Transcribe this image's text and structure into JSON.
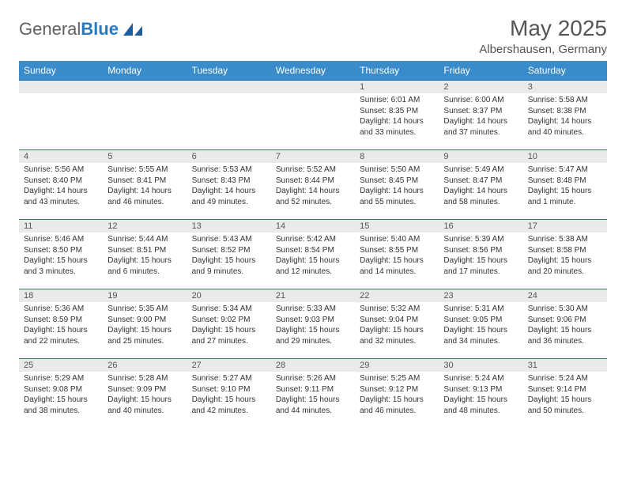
{
  "brand": {
    "text_gray": "General",
    "text_blue": "Blue",
    "shape_color": "#1e5e9e"
  },
  "title": {
    "month": "May 2025",
    "location": "Albershausen, Germany"
  },
  "colors": {
    "header_bg": "#3a8bca",
    "header_fg": "#ffffff",
    "row_divider": "#2f6fa8",
    "daynum_bg": "#eaeaea",
    "text": "#333333"
  },
  "weekdays": [
    "Sunday",
    "Monday",
    "Tuesday",
    "Wednesday",
    "Thursday",
    "Friday",
    "Saturday"
  ],
  "weeks": [
    [
      null,
      null,
      null,
      null,
      {
        "n": "1",
        "sr": "6:01 AM",
        "ss": "8:35 PM",
        "dl": "14 hours and 33 minutes."
      },
      {
        "n": "2",
        "sr": "6:00 AM",
        "ss": "8:37 PM",
        "dl": "14 hours and 37 minutes."
      },
      {
        "n": "3",
        "sr": "5:58 AM",
        "ss": "8:38 PM",
        "dl": "14 hours and 40 minutes."
      }
    ],
    [
      {
        "n": "4",
        "sr": "5:56 AM",
        "ss": "8:40 PM",
        "dl": "14 hours and 43 minutes."
      },
      {
        "n": "5",
        "sr": "5:55 AM",
        "ss": "8:41 PM",
        "dl": "14 hours and 46 minutes."
      },
      {
        "n": "6",
        "sr": "5:53 AM",
        "ss": "8:43 PM",
        "dl": "14 hours and 49 minutes."
      },
      {
        "n": "7",
        "sr": "5:52 AM",
        "ss": "8:44 PM",
        "dl": "14 hours and 52 minutes."
      },
      {
        "n": "8",
        "sr": "5:50 AM",
        "ss": "8:45 PM",
        "dl": "14 hours and 55 minutes."
      },
      {
        "n": "9",
        "sr": "5:49 AM",
        "ss": "8:47 PM",
        "dl": "14 hours and 58 minutes."
      },
      {
        "n": "10",
        "sr": "5:47 AM",
        "ss": "8:48 PM",
        "dl": "15 hours and 1 minute."
      }
    ],
    [
      {
        "n": "11",
        "sr": "5:46 AM",
        "ss": "8:50 PM",
        "dl": "15 hours and 3 minutes."
      },
      {
        "n": "12",
        "sr": "5:44 AM",
        "ss": "8:51 PM",
        "dl": "15 hours and 6 minutes."
      },
      {
        "n": "13",
        "sr": "5:43 AM",
        "ss": "8:52 PM",
        "dl": "15 hours and 9 minutes."
      },
      {
        "n": "14",
        "sr": "5:42 AM",
        "ss": "8:54 PM",
        "dl": "15 hours and 12 minutes."
      },
      {
        "n": "15",
        "sr": "5:40 AM",
        "ss": "8:55 PM",
        "dl": "15 hours and 14 minutes."
      },
      {
        "n": "16",
        "sr": "5:39 AM",
        "ss": "8:56 PM",
        "dl": "15 hours and 17 minutes."
      },
      {
        "n": "17",
        "sr": "5:38 AM",
        "ss": "8:58 PM",
        "dl": "15 hours and 20 minutes."
      }
    ],
    [
      {
        "n": "18",
        "sr": "5:36 AM",
        "ss": "8:59 PM",
        "dl": "15 hours and 22 minutes."
      },
      {
        "n": "19",
        "sr": "5:35 AM",
        "ss": "9:00 PM",
        "dl": "15 hours and 25 minutes."
      },
      {
        "n": "20",
        "sr": "5:34 AM",
        "ss": "9:02 PM",
        "dl": "15 hours and 27 minutes."
      },
      {
        "n": "21",
        "sr": "5:33 AM",
        "ss": "9:03 PM",
        "dl": "15 hours and 29 minutes."
      },
      {
        "n": "22",
        "sr": "5:32 AM",
        "ss": "9:04 PM",
        "dl": "15 hours and 32 minutes."
      },
      {
        "n": "23",
        "sr": "5:31 AM",
        "ss": "9:05 PM",
        "dl": "15 hours and 34 minutes."
      },
      {
        "n": "24",
        "sr": "5:30 AM",
        "ss": "9:06 PM",
        "dl": "15 hours and 36 minutes."
      }
    ],
    [
      {
        "n": "25",
        "sr": "5:29 AM",
        "ss": "9:08 PM",
        "dl": "15 hours and 38 minutes."
      },
      {
        "n": "26",
        "sr": "5:28 AM",
        "ss": "9:09 PM",
        "dl": "15 hours and 40 minutes."
      },
      {
        "n": "27",
        "sr": "5:27 AM",
        "ss": "9:10 PM",
        "dl": "15 hours and 42 minutes."
      },
      {
        "n": "28",
        "sr": "5:26 AM",
        "ss": "9:11 PM",
        "dl": "15 hours and 44 minutes."
      },
      {
        "n": "29",
        "sr": "5:25 AM",
        "ss": "9:12 PM",
        "dl": "15 hours and 46 minutes."
      },
      {
        "n": "30",
        "sr": "5:24 AM",
        "ss": "9:13 PM",
        "dl": "15 hours and 48 minutes."
      },
      {
        "n": "31",
        "sr": "5:24 AM",
        "ss": "9:14 PM",
        "dl": "15 hours and 50 minutes."
      }
    ]
  ],
  "labels": {
    "sunrise": "Sunrise:",
    "sunset": "Sunset:",
    "daylight": "Daylight:"
  }
}
